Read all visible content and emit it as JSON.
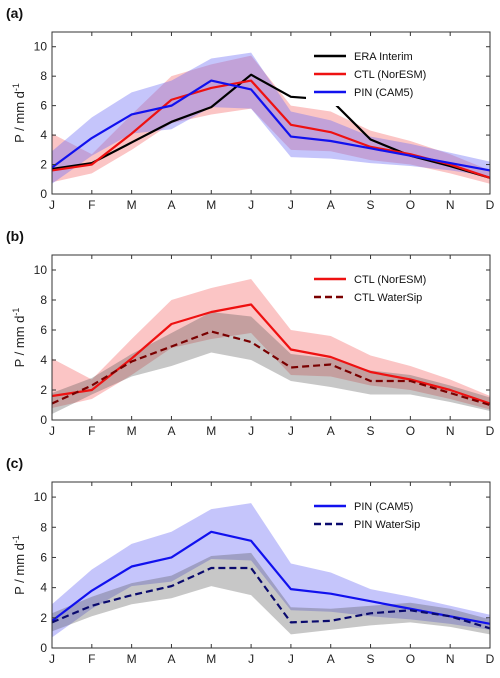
{
  "chart_data": [
    {
      "type": "line",
      "panel_label": "(a)",
      "x": [
        "J",
        "F",
        "M",
        "A",
        "M",
        "J",
        "J",
        "A",
        "S",
        "O",
        "N",
        "D"
      ],
      "ylabel": "P / mm d",
      "ylabel_sup": "-1",
      "ylim": [
        0,
        11
      ],
      "yticks": [
        0,
        2,
        4,
        6,
        8,
        10
      ],
      "legend_position": "top-right",
      "series": [
        {
          "name": "ERA Interim",
          "color": "#000000",
          "dash": "solid",
          "values": [
            1.7,
            2.1,
            3.5,
            4.9,
            5.9,
            8.1,
            6.6,
            6.4,
            3.7,
            2.6,
            1.9,
            1.1
          ]
        },
        {
          "name": "CTL (NorESM)",
          "color": "#ee1111",
          "dash": "solid",
          "values": [
            1.6,
            2.0,
            4.1,
            6.4,
            7.2,
            7.7,
            4.7,
            4.2,
            3.2,
            2.7,
            2.0,
            1.1
          ],
          "band_low": [
            0.8,
            1.4,
            3.0,
            4.8,
            5.4,
            5.8,
            3.0,
            2.9,
            2.3,
            2.0,
            1.4,
            0.7
          ],
          "band_high": [
            4.1,
            2.7,
            5.4,
            8.0,
            8.8,
            9.4,
            6.0,
            5.6,
            4.3,
            3.6,
            2.7,
            1.6
          ]
        },
        {
          "name": "PIN (CAM5)",
          "color": "#1111ee",
          "dash": "solid",
          "values": [
            1.8,
            3.8,
            5.4,
            6.0,
            7.7,
            7.1,
            3.9,
            3.6,
            3.1,
            2.6,
            2.1,
            1.6
          ],
          "band_low": [
            0.7,
            2.6,
            4.1,
            4.4,
            5.9,
            5.8,
            2.5,
            2.4,
            2.1,
            1.9,
            1.6,
            1.2
          ],
          "band_high": [
            2.9,
            5.2,
            6.9,
            7.7,
            9.2,
            9.6,
            5.6,
            5.0,
            3.9,
            3.4,
            2.8,
            2.2
          ]
        }
      ]
    },
    {
      "type": "line",
      "panel_label": "(b)",
      "x": [
        "J",
        "F",
        "M",
        "A",
        "M",
        "J",
        "J",
        "A",
        "S",
        "O",
        "N",
        "D"
      ],
      "ylabel": "P / mm d",
      "ylabel_sup": "-1",
      "ylim": [
        0,
        11
      ],
      "yticks": [
        0,
        2,
        4,
        6,
        8,
        10
      ],
      "legend_position": "top-right",
      "series": [
        {
          "name": "CTL (NorESM)",
          "color": "#ee1111",
          "dash": "solid",
          "values": [
            1.6,
            2.0,
            4.1,
            6.4,
            7.2,
            7.7,
            4.7,
            4.2,
            3.2,
            2.7,
            2.0,
            1.1
          ],
          "band_low": [
            0.8,
            1.4,
            3.0,
            4.8,
            5.4,
            5.8,
            3.0,
            2.9,
            2.3,
            2.0,
            1.4,
            0.7
          ],
          "band_high": [
            4.1,
            2.7,
            5.4,
            8.0,
            8.8,
            9.4,
            6.0,
            5.6,
            4.3,
            3.6,
            2.7,
            1.6
          ]
        },
        {
          "name": "CTL WaterSip",
          "color": "#7a0000",
          "dash": "dashed",
          "values": [
            1.1,
            2.3,
            3.9,
            4.9,
            5.9,
            5.2,
            3.5,
            3.7,
            2.6,
            2.6,
            1.8,
            1.0
          ],
          "band_low": [
            0.4,
            1.7,
            2.9,
            3.6,
            4.5,
            4.0,
            2.6,
            2.2,
            1.7,
            1.7,
            1.2,
            0.6
          ],
          "band_high": [
            1.8,
            2.8,
            4.4,
            5.8,
            7.2,
            6.9,
            4.4,
            4.1,
            3.3,
            3.0,
            2.3,
            1.5
          ]
        }
      ]
    },
    {
      "type": "line",
      "panel_label": "(c)",
      "x": [
        "J",
        "F",
        "M",
        "A",
        "M",
        "J",
        "J",
        "A",
        "S",
        "O",
        "N",
        "D"
      ],
      "ylabel": "P / mm d",
      "ylabel_sup": "-1",
      "ylim": [
        0,
        11
      ],
      "yticks": [
        0,
        2,
        4,
        6,
        8,
        10
      ],
      "legend_position": "top-right",
      "series": [
        {
          "name": "PIN (CAM5)",
          "color": "#1111ee",
          "dash": "solid",
          "values": [
            1.8,
            3.8,
            5.4,
            6.0,
            7.7,
            7.1,
            3.9,
            3.6,
            3.1,
            2.6,
            2.1,
            1.6
          ],
          "band_low": [
            0.7,
            2.6,
            4.1,
            4.4,
            5.9,
            5.8,
            2.5,
            2.4,
            2.1,
            1.9,
            1.6,
            1.2
          ],
          "band_high": [
            2.9,
            5.2,
            6.9,
            7.7,
            9.2,
            9.6,
            5.6,
            5.0,
            3.9,
            3.4,
            2.8,
            2.2
          ]
        },
        {
          "name": "PIN WaterSip",
          "color": "#0a0a6e",
          "dash": "dashed",
          "values": [
            1.7,
            2.8,
            3.5,
            4.1,
            5.3,
            5.3,
            1.7,
            1.8,
            2.3,
            2.5,
            2.1,
            1.3
          ],
          "band_low": [
            1.1,
            2.1,
            2.9,
            3.3,
            4.1,
            3.5,
            0.9,
            1.2,
            1.5,
            1.7,
            1.4,
            0.9
          ],
          "band_high": [
            2.3,
            3.4,
            4.3,
            4.8,
            6.1,
            6.3,
            2.7,
            2.6,
            2.8,
            3.0,
            2.6,
            1.9
          ]
        }
      ]
    }
  ]
}
